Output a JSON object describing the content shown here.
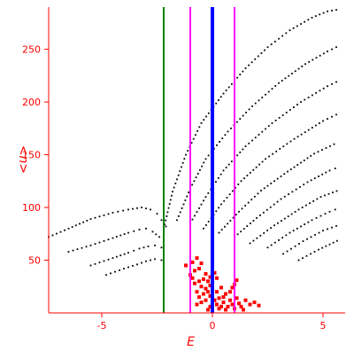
{
  "chart_data": {
    "type": "scatter",
    "title": "",
    "xlabel": "E",
    "ylabel": "<n>",
    "xlim": [
      -7.4,
      6.0
    ],
    "ylim": [
      0,
      290
    ],
    "grid": false,
    "legend": "none",
    "x_ticks": [
      -5,
      0,
      5
    ],
    "x_tick_labels": [
      "-5",
      "0",
      "5"
    ],
    "y_ticks": [
      50,
      100,
      150,
      200,
      250
    ],
    "y_tick_labels": [
      "50",
      "100",
      "150",
      "200",
      "250"
    ],
    "colors": {
      "axes": "#ff0000",
      "labels": "#ff0000",
      "curves": "#000000",
      "green_line": "#008000",
      "magenta_line": "#ff00ff",
      "blue_line": "#0000ff",
      "red_points": "#ff0000"
    },
    "vertical_lines": [
      {
        "x": -2.2,
        "color": "#008000"
      },
      {
        "x": -1.0,
        "color": "#ff00ff"
      },
      {
        "x": 0.0,
        "color": "#0000ff"
      },
      {
        "x": 1.0,
        "color": "#ff00ff"
      }
    ],
    "curves_left": [
      {
        "x": [
          -7.4,
          -6.5,
          -5.5,
          -4.5,
          -3.8,
          -3.2,
          -2.8,
          -2.5,
          -2.3,
          -2.1,
          -2.0
        ],
        "y": [
          72,
          80,
          89,
          95,
          98,
          100,
          98,
          94,
          88,
          82,
          75
        ]
      },
      {
        "x": [
          -6.5,
          -5.5,
          -4.5,
          -3.8,
          -3.3,
          -3.0,
          -2.7,
          -2.4,
          -2.2
        ],
        "y": [
          58,
          64,
          71,
          76,
          79,
          80,
          77,
          72,
          66
        ]
      },
      {
        "x": [
          -5.5,
          -4.5,
          -3.8,
          -3.3,
          -2.9,
          -2.6,
          -2.3,
          -2.1
        ],
        "y": [
          45,
          52,
          57,
          61,
          63,
          64,
          62,
          57
        ]
      },
      {
        "x": [
          -4.8,
          -4.0,
          -3.4,
          -3.0,
          -2.6,
          -2.3,
          -2.1
        ],
        "y": [
          36,
          42,
          46,
          49,
          51,
          50,
          46
        ]
      }
    ],
    "curves_right": [
      {
        "x": [
          -2.2,
          -1.8,
          -1.2,
          -0.5,
          0.5,
          1.5,
          2.5,
          3.5,
          4.5,
          5.2,
          5.8
        ],
        "y": [
          80,
          115,
          150,
          180,
          208,
          232,
          252,
          268,
          280,
          286,
          288
        ]
      },
      {
        "x": [
          -1.6,
          -1.0,
          -0.3,
          0.7,
          1.8,
          3.0,
          4.2,
          5.2,
          5.8
        ],
        "y": [
          88,
          118,
          146,
          172,
          196,
          218,
          236,
          248,
          254
        ]
      },
      {
        "x": [
          -1.0,
          -0.3,
          0.5,
          1.5,
          2.7,
          4.0,
          5.2,
          5.8
        ],
        "y": [
          85,
          110,
          135,
          158,
          180,
          200,
          215,
          221
        ]
      },
      {
        "x": [
          -0.4,
          0.4,
          1.3,
          2.4,
          3.7,
          5.0,
          5.8
        ],
        "y": [
          80,
          103,
          125,
          146,
          165,
          182,
          190
        ]
      },
      {
        "x": [
          0.3,
          1.2,
          2.2,
          3.4,
          4.6,
          5.5,
          5.8
        ],
        "y": [
          76,
          96,
          116,
          134,
          151,
          160,
          163
        ]
      },
      {
        "x": [
          1.0,
          2.0,
          3.1,
          4.3,
          5.3,
          5.8
        ],
        "y": [
          72,
          90,
          108,
          124,
          135,
          139
        ]
      },
      {
        "x": [
          1.7,
          2.8,
          3.9,
          4.9,
          5.8
        ],
        "y": [
          66,
          83,
          98,
          110,
          117
        ]
      },
      {
        "x": [
          2.5,
          3.5,
          4.5,
          5.3,
          5.8
        ],
        "y": [
          62,
          76,
          88,
          96,
          100
        ]
      },
      {
        "x": [
          3.2,
          4.1,
          5.0,
          5.8
        ],
        "y": [
          56,
          68,
          78,
          84
        ]
      },
      {
        "x": [
          3.9,
          4.8,
          5.8
        ],
        "y": [
          50,
          60,
          70
        ]
      }
    ],
    "red_points": [
      [
        -0.9,
        48
      ],
      [
        -0.7,
        52
      ],
      [
        -1.2,
        45
      ],
      [
        -0.5,
        47
      ],
      [
        -0.8,
        40
      ],
      [
        -0.6,
        42
      ],
      [
        -0.3,
        37
      ],
      [
        -0.1,
        34
      ],
      [
        -0.2,
        30
      ],
      [
        0.0,
        28
      ],
      [
        -0.4,
        32
      ],
      [
        -0.1,
        26
      ],
      [
        -0.3,
        23
      ],
      [
        -0.5,
        25
      ],
      [
        -0.2,
        20
      ],
      [
        -0.4,
        18
      ],
      [
        -0.1,
        16
      ],
      [
        0.2,
        20
      ],
      [
        0.4,
        24
      ],
      [
        0.6,
        18
      ],
      [
        0.3,
        14
      ],
      [
        0.1,
        12
      ],
      [
        -0.3,
        12
      ],
      [
        0.5,
        10
      ],
      [
        0.8,
        12
      ],
      [
        0.2,
        8
      ],
      [
        -0.1,
        6
      ],
      [
        0.4,
        6
      ],
      [
        0.9,
        8
      ],
      [
        1.2,
        9
      ],
      [
        1.5,
        12
      ],
      [
        1.1,
        14
      ],
      [
        0.7,
        6
      ],
      [
        0.3,
        4
      ],
      [
        -0.2,
        3
      ],
      [
        0.6,
        3
      ],
      [
        1.0,
        4
      ],
      [
        1.3,
        6
      ],
      [
        1.7,
        8
      ],
      [
        1.0,
        27
      ],
      [
        1.1,
        31
      ],
      [
        0.9,
        24
      ],
      [
        -0.6,
        15
      ],
      [
        -0.7,
        20
      ],
      [
        -0.8,
        28
      ],
      [
        -1.0,
        36
      ],
      [
        -0.9,
        33
      ],
      [
        -0.6,
        30
      ],
      [
        0.1,
        38
      ],
      [
        0.2,
        33
      ],
      [
        -0.5,
        10
      ],
      [
        -0.7,
        8
      ],
      [
        0.0,
        2
      ],
      [
        0.5,
        15
      ],
      [
        0.8,
        20
      ],
      [
        1.4,
        3
      ],
      [
        1.9,
        10
      ],
      [
        2.1,
        7
      ]
    ]
  }
}
